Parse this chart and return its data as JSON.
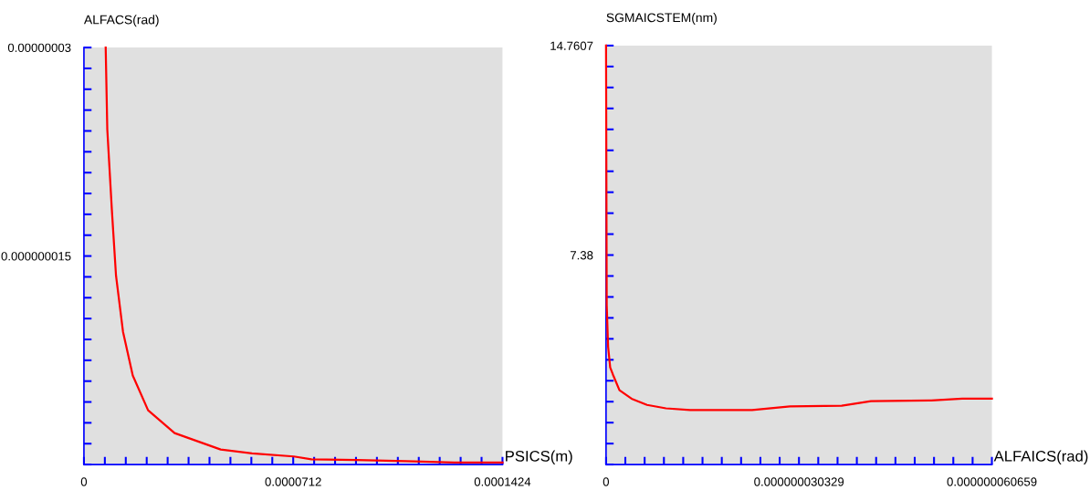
{
  "chart_data": [
    {
      "type": "line",
      "ylabel": "ALFACS(rad)",
      "xlabel": "PSICS(m)",
      "xlim": [
        0,
        0.0001424
      ],
      "ylim": [
        0,
        3e-08
      ],
      "grid": false,
      "legend": false,
      "marker": "none",
      "line_style": "solid",
      "xticks": [
        {
          "value": 0,
          "label": "0"
        },
        {
          "value": 7.12e-06,
          "label": null
        },
        {
          "value": 1.424e-05,
          "label": null
        },
        {
          "value": 2.136e-05,
          "label": null
        },
        {
          "value": 2.848e-05,
          "label": null
        },
        {
          "value": 3.56e-05,
          "label": null
        },
        {
          "value": 4.272e-05,
          "label": null
        },
        {
          "value": 4.984e-05,
          "label": null
        },
        {
          "value": 5.696e-05,
          "label": null
        },
        {
          "value": 6.408e-05,
          "label": null
        },
        {
          "value": 7.12e-05,
          "label": "0.0000712"
        },
        {
          "value": 7.832e-05,
          "label": null
        },
        {
          "value": 8.544e-05,
          "label": null
        },
        {
          "value": 9.256e-05,
          "label": null
        },
        {
          "value": 9.968e-05,
          "label": null
        },
        {
          "value": 0.0001068,
          "label": null
        },
        {
          "value": 0.00011392,
          "label": null
        },
        {
          "value": 0.00012104,
          "label": null
        },
        {
          "value": 0.00012816,
          "label": null
        },
        {
          "value": 0.00013528,
          "label": null
        },
        {
          "value": 0.0001424,
          "label": "0.0001424"
        }
      ],
      "yticks": [
        {
          "value": 0,
          "label": null
        },
        {
          "value": 1.5e-09,
          "label": null
        },
        {
          "value": 3e-09,
          "label": null
        },
        {
          "value": 4.5e-09,
          "label": null
        },
        {
          "value": 6e-09,
          "label": null
        },
        {
          "value": 7.5e-09,
          "label": null
        },
        {
          "value": 9e-09,
          "label": null
        },
        {
          "value": 1.05e-08,
          "label": null
        },
        {
          "value": 1.2e-08,
          "label": null
        },
        {
          "value": 1.35e-08,
          "label": null
        },
        {
          "value": 1.5e-08,
          "label": "0.000000015"
        },
        {
          "value": 1.65e-08,
          "label": null
        },
        {
          "value": 1.8e-08,
          "label": null
        },
        {
          "value": 1.95e-08,
          "label": null
        },
        {
          "value": 2.1e-08,
          "label": null
        },
        {
          "value": 2.25e-08,
          "label": null
        },
        {
          "value": 2.4e-08,
          "label": null
        },
        {
          "value": 2.55e-08,
          "label": null
        },
        {
          "value": 2.7e-08,
          "label": null
        },
        {
          "value": 2.85e-08,
          "label": null
        },
        {
          "value": 3e-08,
          "label": "0.00000003"
        }
      ],
      "series": [
        {
          "color": "#ff0000",
          "x": [
            7.4e-06,
            7.95e-06,
            9.49e-06,
            1.092e-05,
            1.329e-05,
            1.661e-05,
            2.183e-05,
            3.085e-05,
            4.652e-05,
            5.72e-05,
            7.14e-05,
            7.74e-05,
            9.28e-05,
            0.0001094,
            0.000126,
            0.0001424
          ],
          "values": [
            3e-08,
            2.41e-08,
            1.836e-08,
            1.358e-08,
            9.56e-09,
            6.41e-09,
            3.9e-09,
            2.26e-09,
            1.08e-09,
            8e-10,
            5.8e-10,
            3.8e-10,
            3.3e-10,
            2.5e-10,
            1.5e-10,
            1.5e-10
          ]
        }
      ]
    },
    {
      "type": "line",
      "ylabel": "SGMAICSTEM(nm)",
      "xlabel": "ALFAICS(rad)",
      "xlim": [
        0,
        6.0659e-08
      ],
      "ylim": [
        0,
        14.7607
      ],
      "grid": false,
      "legend": false,
      "marker": "none",
      "line_style": "solid",
      "xticks": [
        {
          "value": 0,
          "label": "0"
        },
        {
          "value": 3.033e-09,
          "label": null
        },
        {
          "value": 6.066e-09,
          "label": null
        },
        {
          "value": 9.099e-09,
          "label": null
        },
        {
          "value": 1.2132e-08,
          "label": null
        },
        {
          "value": 1.5165e-08,
          "label": null
        },
        {
          "value": 1.8198e-08,
          "label": null
        },
        {
          "value": 2.1231e-08,
          "label": null
        },
        {
          "value": 2.4264e-08,
          "label": null
        },
        {
          "value": 2.7297e-08,
          "label": null
        },
        {
          "value": 3.0329e-08,
          "label": "0.000000030329"
        },
        {
          "value": 3.3362e-08,
          "label": null
        },
        {
          "value": 3.6395e-08,
          "label": null
        },
        {
          "value": 3.9428e-08,
          "label": null
        },
        {
          "value": 4.2461e-08,
          "label": null
        },
        {
          "value": 4.5494e-08,
          "label": null
        },
        {
          "value": 4.8527e-08,
          "label": null
        },
        {
          "value": 5.156e-08,
          "label": null
        },
        {
          "value": 5.4593e-08,
          "label": null
        },
        {
          "value": 5.7626e-08,
          "label": null
        },
        {
          "value": 6.0659e-08,
          "label": "0.000000060659"
        }
      ],
      "yticks": [
        {
          "value": 0,
          "label": null
        },
        {
          "value": 0.738,
          "label": null
        },
        {
          "value": 1.476,
          "label": null
        },
        {
          "value": 2.214,
          "label": null
        },
        {
          "value": 2.952,
          "label": null
        },
        {
          "value": 3.69,
          "label": null
        },
        {
          "value": 4.428,
          "label": null
        },
        {
          "value": 5.166,
          "label": null
        },
        {
          "value": 5.904,
          "label": null
        },
        {
          "value": 6.642,
          "label": null
        },
        {
          "value": 7.38,
          "label": "7.38"
        },
        {
          "value": 8.118,
          "label": null
        },
        {
          "value": 8.856,
          "label": null
        },
        {
          "value": 9.594,
          "label": null
        },
        {
          "value": 10.332,
          "label": null
        },
        {
          "value": 11.07,
          "label": null
        },
        {
          "value": 11.808,
          "label": null
        },
        {
          "value": 12.546,
          "label": null
        },
        {
          "value": 13.284,
          "label": null
        },
        {
          "value": 14.022,
          "label": null
        },
        {
          "value": 14.7607,
          "label": "14.7607"
        }
      ],
      "series": [
        {
          "color": "#ff0000",
          "x": [
            0,
            1.08e-10,
            3.25e-10,
            6.5e-10,
            1.08e-09,
            2.11e-09,
            4.01e-09,
            6.44e-09,
            9.42e-09,
            1.321e-08,
            2.296e-08,
            2.892e-08,
            3.705e-08,
            4.165e-08,
            5.113e-08,
            5.6e-08,
            6.0659e-08
          ],
          "values": [
            14.76,
            5.61,
            4.15,
            3.42,
            3.17,
            2.62,
            2.32,
            2.1,
            1.98,
            1.92,
            1.92,
            2.05,
            2.07,
            2.23,
            2.26,
            2.32,
            2.32
          ]
        }
      ]
    }
  ]
}
